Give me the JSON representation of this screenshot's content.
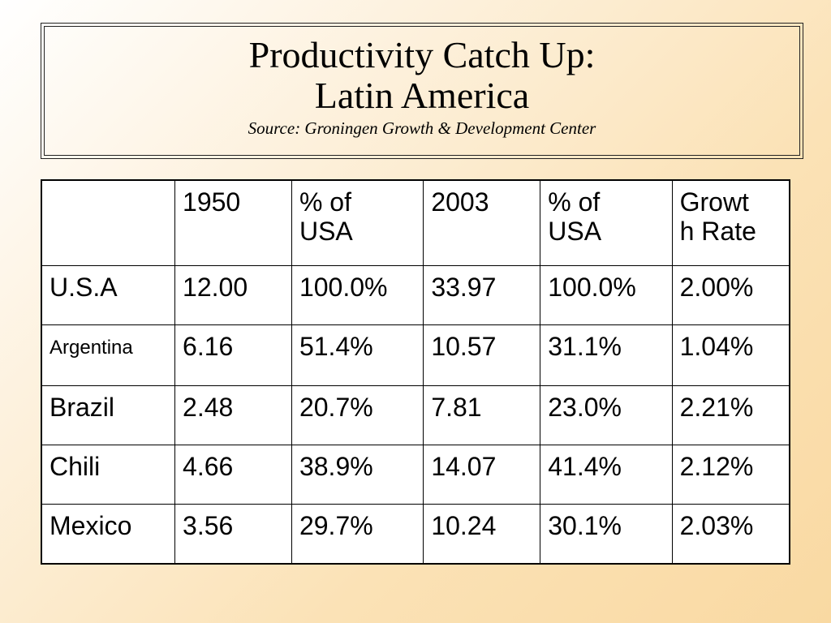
{
  "slide": {
    "title_line1": "Productivity Catch Up:",
    "title_line2": "Latin America",
    "source": "Source: Groningen Growth & Development Center"
  },
  "table": {
    "headers": [
      "",
      "1950",
      "% of USA",
      "2003",
      "% of USA",
      "Growth Rate"
    ],
    "header_display": [
      "",
      "1950",
      "% of\nUSA",
      "2003",
      "% of\nUSA",
      "Growt\nh Rate"
    ],
    "rows": [
      [
        "U.S.A",
        "12.00",
        "100.0%",
        "33.97",
        "100.0%",
        "2.00%"
      ],
      [
        "Argentina",
        "6.16",
        "51.4%",
        "10.57",
        "31.1%",
        "1.04%"
      ],
      [
        "Brazil",
        "2.48",
        "20.7%",
        "7.81",
        "23.0%",
        "2.21%"
      ],
      [
        "Chili",
        "4.66",
        "38.9%",
        "14.07",
        "41.4%",
        "2.12%"
      ],
      [
        "Mexico",
        "3.56",
        "29.7%",
        "10.24",
        "30.1%",
        "2.03%"
      ]
    ]
  }
}
